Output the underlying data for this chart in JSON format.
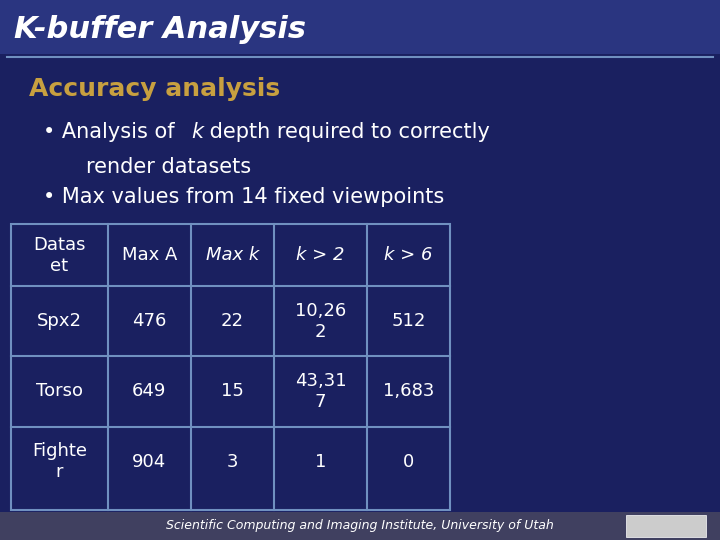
{
  "title": "K-buffer Analysis",
  "subtitle": "Accuracy analysis",
  "bullet1_prefix": "Analysis of ",
  "bullet1_italic": "k",
  "bullet1_suffix": " depth required to correctly\n    render datasets",
  "bullet2": "Max values from 14 fixed viewpoints",
  "bg_color": "#1a2060",
  "header_bar_color": "#2a3580",
  "title_color": "#ffffff",
  "subtitle_color": "#c8a040",
  "bullet_color": "#ffffff",
  "table_text_color": "#ffffff",
  "table_header_italic_color": "#ffffff",
  "table_border_color": "#7090c0",
  "footer_text": "Scientific Computing and Imaging Institute, University of Utah",
  "footer_bg": "#404060",
  "table_headers": [
    "Datas\net",
    "Max A",
    "Max k",
    "k > 2",
    "k > 6"
  ],
  "table_rows": [
    [
      "Spx2",
      "476",
      "22",
      "10,26\n2",
      "512"
    ],
    [
      "Torso",
      "649",
      "15",
      "43,31\n7",
      "1,683"
    ],
    [
      "Fighte\nr",
      "904",
      "3",
      "1",
      "0"
    ]
  ],
  "italic_header_cols": [
    2,
    3,
    4
  ],
  "title_line_color": "#7090c0"
}
